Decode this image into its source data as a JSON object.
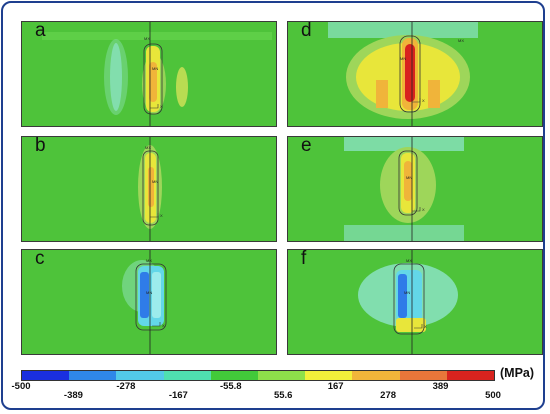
{
  "panels": [
    {
      "label": "a",
      "mx": "MX",
      "mn": "MN",
      "x": "X"
    },
    {
      "label": "b",
      "mx": "MX",
      "mn": "MN",
      "x": "X"
    },
    {
      "label": "c",
      "mx": "MX",
      "mn": "MN",
      "x": "X"
    },
    {
      "label": "d",
      "mx": "MX",
      "mn": "MN",
      "x": "X"
    },
    {
      "label": "e",
      "mx": "MX",
      "mn": "MN",
      "x": "X"
    },
    {
      "label": "f",
      "mx": "MX",
      "mn": "MN",
      "x": "X"
    }
  ],
  "colorbar": {
    "unit": "(MPa)",
    "colors": [
      "#1a2fe0",
      "#2f87e8",
      "#52c9e8",
      "#4fe0b0",
      "#42c93a",
      "#8ee04a",
      "#f3f03a",
      "#f1b53a",
      "#e8763a",
      "#d8231e"
    ],
    "ticks_bottom": [
      "-500",
      "-278",
      "-55.8",
      "167",
      "389"
    ],
    "ticks_top": [
      "-389",
      "-167",
      "55.6",
      "278",
      "500"
    ]
  },
  "palette": {
    "green": "#4ec33a",
    "yellow": "#e8e63a",
    "orange": "#f0b43a",
    "red": "#d8231e",
    "cyan": "#63d7e8",
    "lightcyan": "#9cecec",
    "blue": "#2f7ce8"
  }
}
